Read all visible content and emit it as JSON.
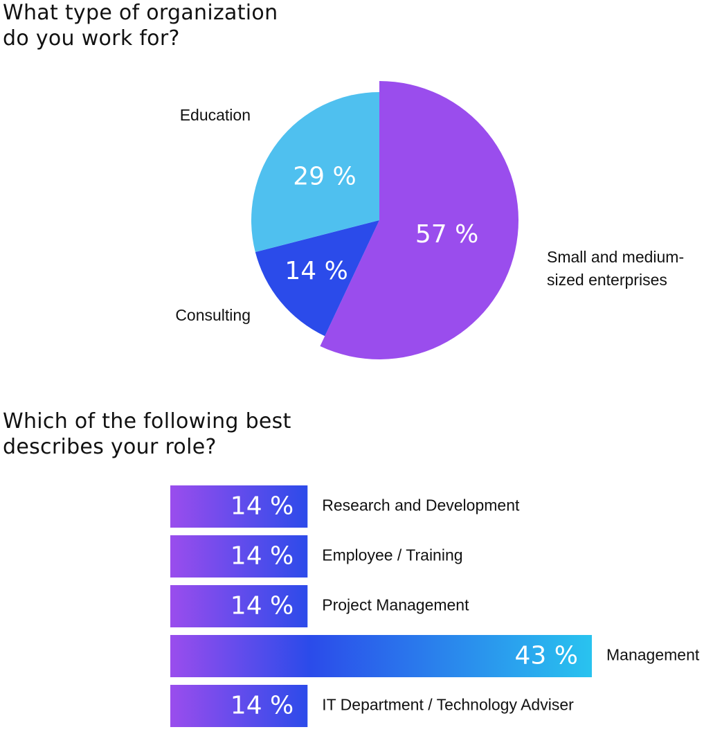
{
  "chart_data": [
    {
      "type": "pie",
      "title": "What type of organization\ndo you work for?",
      "categories": [
        "Small and medium-\nsized enterprises",
        "Consulting",
        "Education"
      ],
      "values": [
        57,
        14,
        29
      ],
      "value_labels": [
        "57 %",
        "14 %",
        "29 %"
      ],
      "colors": [
        "#9a4ded",
        "#2b4bea",
        "#4fc0ef"
      ]
    },
    {
      "type": "hbar",
      "title": "Which of the following best\ndescribes your role?",
      "categories": [
        "Research and Development",
        "Employee / Training",
        "Project Management",
        "Management",
        "IT Department / Technology Adviser"
      ],
      "values": [
        14,
        14,
        14,
        43,
        14
      ],
      "value_labels": [
        "14 %",
        "14 %",
        "14 %",
        "43 %",
        "14 %"
      ]
    }
  ]
}
